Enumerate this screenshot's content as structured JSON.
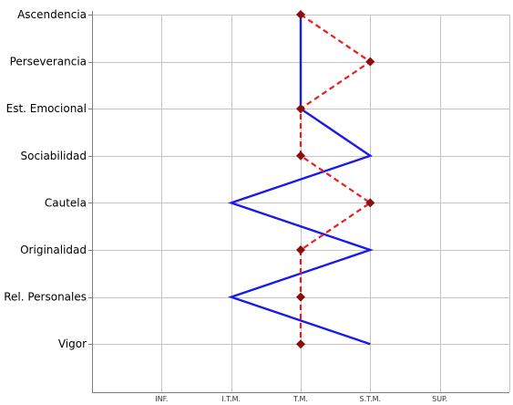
{
  "chart_data": {
    "type": "line",
    "orientation": "horizontal-profile",
    "categories": [
      "Ascendencia",
      "Perseverancia",
      "Est. Emocional",
      "Sociabilidad",
      "Cautela",
      "Originalidad",
      "Rel. Personales",
      "Vigor"
    ],
    "levels": [
      "INF.",
      "I.T.M.",
      "T.M.",
      "S.T.M.",
      "SUP."
    ],
    "x_range": [
      0,
      6
    ],
    "grid": true,
    "series": [
      {
        "color": "#1a1aeb",
        "style": "solid",
        "marker": "none",
        "values": [
          3,
          3,
          3,
          4,
          2,
          4,
          2,
          4
        ]
      },
      {
        "color": "#ee1c1c",
        "style": "dashed",
        "marker": "diamond",
        "marker_color": "#8b0d0d",
        "values": [
          3,
          4,
          3,
          3,
          4,
          3,
          3,
          3
        ]
      }
    ]
  }
}
